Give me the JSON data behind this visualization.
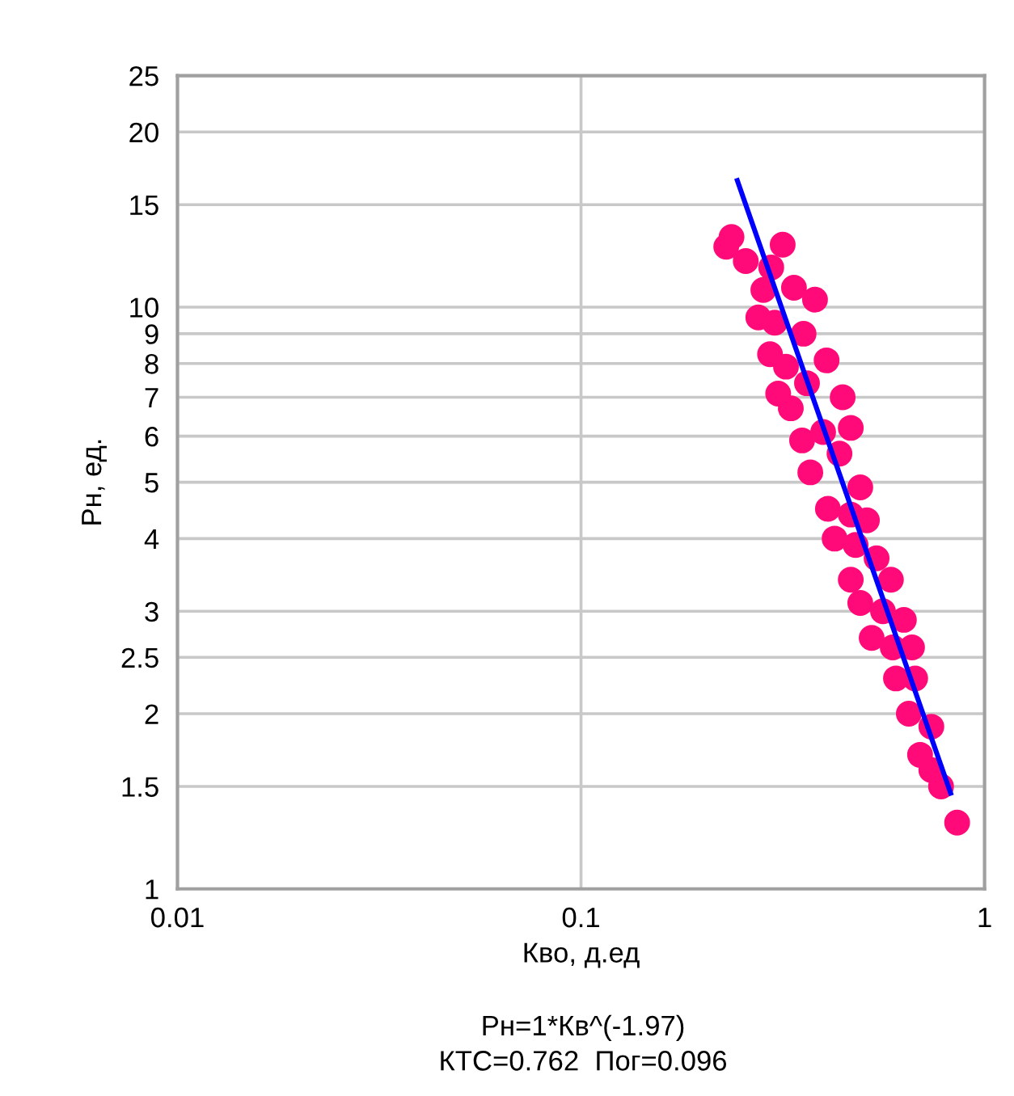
{
  "chart_data": {
    "type": "scatter",
    "xlabel": "Кво, д.ед",
    "ylabel": "Рн, ед.",
    "log": "xy",
    "grid": true,
    "marker": "circle",
    "xlim": [
      0.01,
      1
    ],
    "xticks": [
      0.01,
      0.1,
      1
    ],
    "ylim": [
      1,
      25
    ],
    "yticks": [
      1,
      1.5,
      2,
      2.5,
      3,
      4,
      5,
      6,
      7,
      8,
      9,
      10,
      15,
      20,
      25
    ],
    "annotations": [
      "Рн=1*Кв^(-1.97)",
      "КТС=0.762  Пог=0.096"
    ],
    "series": [
      {
        "color": "#ff0a78",
        "x": [
          0.236,
          0.229,
          0.316,
          0.256,
          0.296,
          0.337,
          0.38,
          0.283,
          0.275,
          0.302,
          0.356,
          0.406,
          0.294,
          0.322,
          0.308,
          0.363,
          0.445,
          0.466,
          0.331,
          0.353,
          0.398,
          0.437,
          0.37,
          0.492,
          0.409,
          0.466,
          0.511,
          0.425,
          0.479,
          0.54,
          0.466,
          0.586,
          0.492,
          0.56,
          0.631,
          0.525,
          0.592,
          0.661,
          0.603,
          0.673,
          0.649,
          0.738,
          0.692,
          0.738,
          0.78,
          0.855
        ],
        "values": [
          13.2,
          12.7,
          12.8,
          12.0,
          11.7,
          10.8,
          10.3,
          10.7,
          9.6,
          9.4,
          9.0,
          8.1,
          8.3,
          7.9,
          7.1,
          7.4,
          7.0,
          6.2,
          6.7,
          5.9,
          6.1,
          5.6,
          5.2,
          4.9,
          4.5,
          4.4,
          4.3,
          4.0,
          3.9,
          3.7,
          3.4,
          3.4,
          3.1,
          3.0,
          2.9,
          2.7,
          2.6,
          2.6,
          2.3,
          2.3,
          2.0,
          1.9,
          1.7,
          1.6,
          1.5,
          1.3
        ]
      },
      {
        "type": "line",
        "color": "#0000ff",
        "marker": "none",
        "x": [
          0.244,
          0.824
        ],
        "values": [
          16.5,
          1.46
        ]
      }
    ]
  }
}
